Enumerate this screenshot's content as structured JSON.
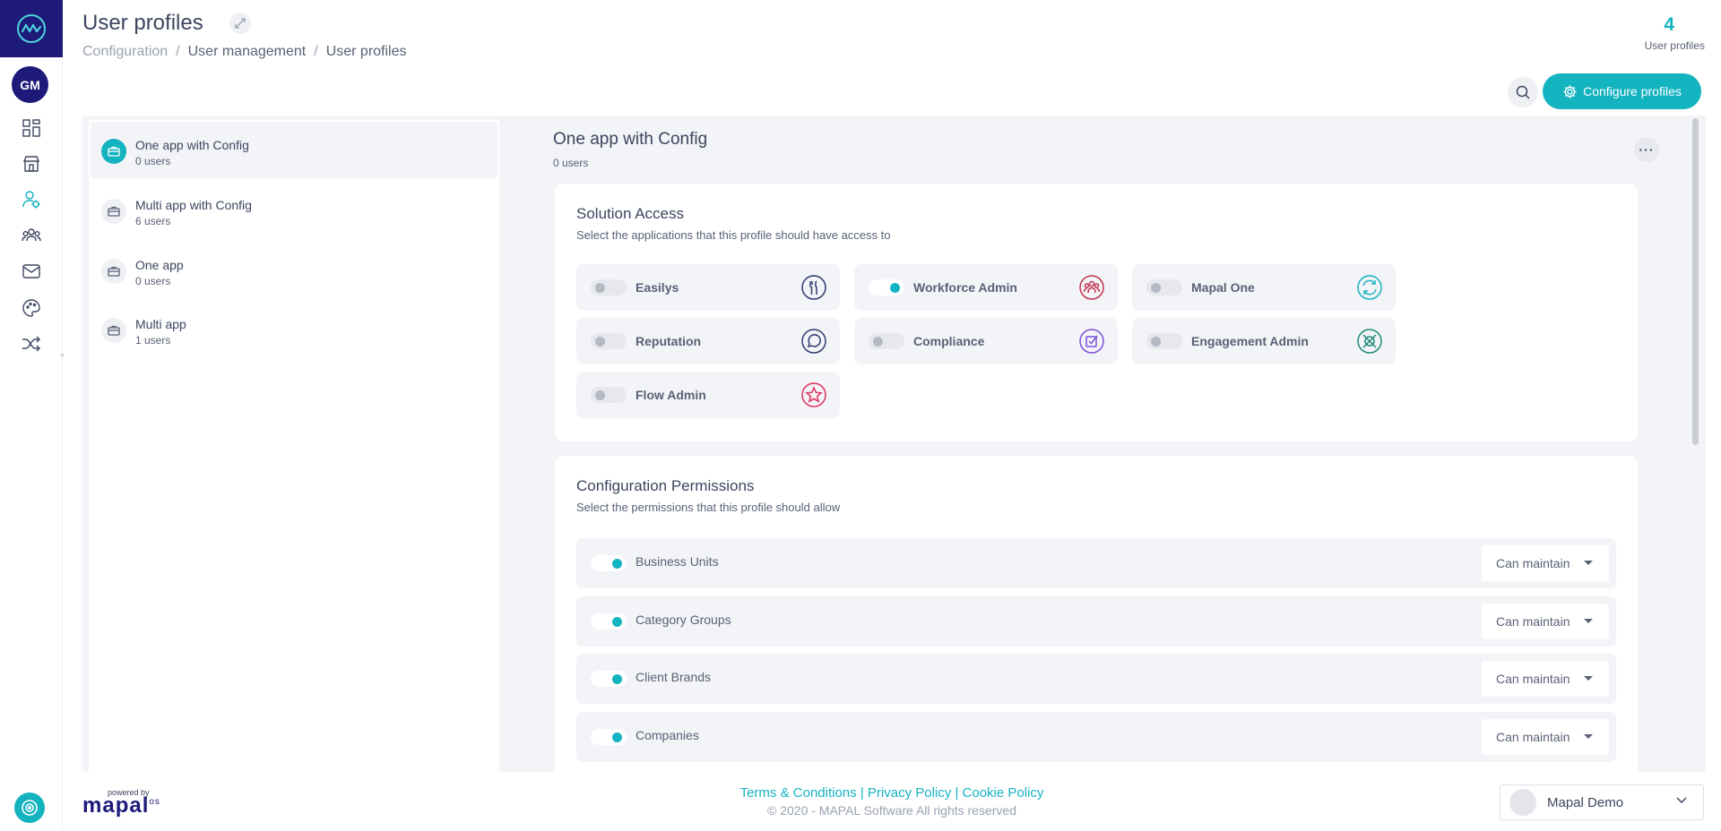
{
  "header": {
    "title": "User profiles",
    "breadcrumb": [
      "Configuration",
      "User management",
      "User profiles"
    ],
    "count": "4",
    "count_label": "User profiles",
    "configure_label": "Configure profiles"
  },
  "profiles": [
    {
      "name": "One app with Config",
      "users": "0 users",
      "active": true
    },
    {
      "name": "Multi app with Config",
      "users": "6 users",
      "active": false
    },
    {
      "name": "One app",
      "users": "0 users",
      "active": false
    },
    {
      "name": "Multi app",
      "users": "1 users",
      "active": false
    }
  ],
  "detail": {
    "title": "One app with Config",
    "users": "0 users"
  },
  "solution_access": {
    "title": "Solution Access",
    "subtitle": "Select the applications that this profile should have access to",
    "apps": [
      {
        "label": "Easilys",
        "on": false,
        "icon": "utensils-icon",
        "color": "#2d3a6e"
      },
      {
        "label": "Workforce Admin",
        "on": true,
        "icon": "people-icon",
        "color": "#c4304f"
      },
      {
        "label": "Mapal One",
        "on": false,
        "icon": "refresh-circle-icon",
        "color": "#14b3c0"
      },
      {
        "label": "Reputation",
        "on": false,
        "icon": "chat-bubble-icon",
        "color": "#2d3a6e"
      },
      {
        "label": "Compliance",
        "on": false,
        "icon": "checkbox-icon",
        "color": "#7a4ed8"
      },
      {
        "label": "Engagement Admin",
        "on": false,
        "icon": "compass-icon",
        "color": "#1e8a7a"
      },
      {
        "label": "Flow Admin",
        "on": false,
        "icon": "star-icon",
        "color": "#e0325c"
      }
    ]
  },
  "configuration_permissions": {
    "title": "Configuration Permissions",
    "subtitle": "Select the permissions that this profile should allow",
    "items": [
      {
        "label": "Business Units",
        "on": true,
        "level": "Can maintain"
      },
      {
        "label": "Category Groups",
        "on": true,
        "level": "Can maintain"
      },
      {
        "label": "Client Brands",
        "on": true,
        "level": "Can maintain"
      },
      {
        "label": "Companies",
        "on": true,
        "level": "Can maintain"
      }
    ]
  },
  "footer": {
    "powered_by": "powered by",
    "brand": "mapal",
    "brand_sup": "os",
    "links": [
      "Terms & Conditions",
      "Privacy Policy",
      "Cookie Policy"
    ],
    "copyright": "© 2020 - MAPAL Software All rights reserved",
    "user_name": "Mapal Demo"
  },
  "rail": {
    "avatar": "GM"
  },
  "colors": {
    "accent": "#14b3c0",
    "brand": "#1d1a7a"
  }
}
